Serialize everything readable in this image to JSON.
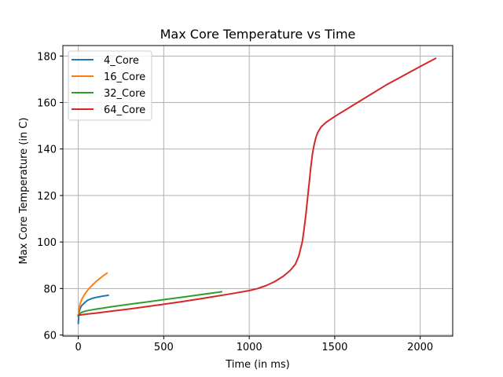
{
  "chart_data": {
    "type": "line",
    "title": "Max Core Temperature vs Time",
    "xlabel": "Time (in ms)",
    "ylabel": "Max Core Temperature (in C)",
    "xlim": [
      -90,
      2190
    ],
    "ylim": [
      59.5,
      184.5
    ],
    "xticks": [
      0,
      500,
      1000,
      1500,
      2000
    ],
    "yticks": [
      60,
      80,
      100,
      120,
      140,
      160,
      180
    ],
    "grid": true,
    "legend_position": "top-left",
    "series": [
      {
        "name": "4_Core",
        "color": "#1f77b4",
        "x": [
          0,
          3,
          6,
          10,
          15,
          20,
          30,
          40,
          50,
          60,
          80,
          100,
          120,
          140,
          160,
          175
        ],
        "y": [
          65,
          68,
          70,
          71.2,
          72,
          72.6,
          73.4,
          74.1,
          74.7,
          75.1,
          75.7,
          76.1,
          76.4,
          76.7,
          76.9,
          77.1
        ]
      },
      {
        "name": "16_Core",
        "color": "#ff7f0e",
        "x": [
          0,
          3,
          6,
          10,
          15,
          20,
          30,
          40,
          50,
          60,
          80,
          100,
          120,
          140,
          160,
          168
        ],
        "y": [
          68,
          70.5,
          72,
          73.2,
          74.3,
          75.2,
          76.6,
          77.8,
          78.8,
          79.7,
          81.3,
          82.7,
          84,
          85.1,
          86.2,
          86.6
        ]
      },
      {
        "name": "32_Core",
        "color": "#2ca02c",
        "x": [
          0,
          5,
          10,
          20,
          30,
          50,
          100,
          200,
          300,
          400,
          500,
          600,
          700,
          800,
          838
        ],
        "y": [
          68,
          68.8,
          69.3,
          69.7,
          70,
          70.4,
          71.1,
          72.2,
          73.2,
          74.2,
          75.2,
          76.2,
          77.2,
          78.2,
          78.6
        ]
      },
      {
        "name": "64_Core",
        "color": "#d62728",
        "x": [
          0,
          50,
          100,
          200,
          300,
          400,
          500,
          600,
          700,
          800,
          900,
          1000,
          1050,
          1100,
          1150,
          1200,
          1240,
          1270,
          1290,
          1310,
          1320,
          1330,
          1340,
          1350,
          1360,
          1370,
          1380,
          1390,
          1400,
          1420,
          1450,
          1500,
          1600,
          1700,
          1800,
          1900,
          2000,
          2090
        ],
        "y": [
          68.5,
          69,
          69.4,
          70.3,
          71.2,
          72.2,
          73.2,
          74.3,
          75.4,
          76.6,
          77.8,
          79.1,
          80,
          81.3,
          83,
          85.3,
          87.8,
          90.5,
          94,
          100,
          105,
          111,
          118,
          125,
          132,
          138,
          142,
          145,
          147,
          149.5,
          151.5,
          154,
          158.5,
          163,
          167.5,
          171.5,
          175.5,
          179
        ]
      }
    ]
  }
}
